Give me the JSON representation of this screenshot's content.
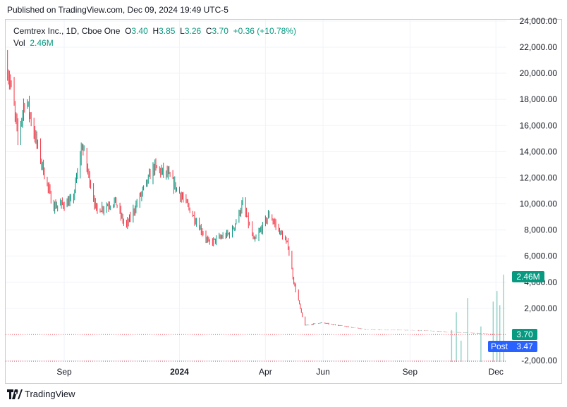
{
  "header": {
    "published": "Published on TradingView.com, Dec 09, 2024 19:49 UTC-5"
  },
  "legend": {
    "symbol": "Cemtrex Inc., 1D, Cboe One",
    "o_label": "O",
    "o": "3.40",
    "h_label": "H",
    "h": "3.85",
    "l_label": "L",
    "l": "3.26",
    "c_label": "C",
    "c": "3.70",
    "change": "+0.36 (+10.78%)",
    "vol_label": "Vol",
    "vol": "2.46M"
  },
  "badges": {
    "volume": "2.46M",
    "price": "3.70",
    "post_label": "Post",
    "post": "3.47"
  },
  "footer": {
    "brand": "TradingView"
  },
  "colors": {
    "up": "#089981",
    "down": "#f23645",
    "post": "#2962ff",
    "grid": "#f0f3fa",
    "text": "#131722"
  },
  "chart_data": {
    "type": "candlestick",
    "y_ticks": [
      "-2,000.00",
      "2,000.00",
      "4,000.00",
      "6,000.00",
      "8,000.00",
      "10,000.00",
      "12,000.00",
      "14,000.00",
      "16,000.00",
      "18,000.00",
      "20,000.00",
      "22,000.00",
      "24,000.00"
    ],
    "y_tick_values": [
      -2000,
      2000,
      4000,
      6000,
      8000,
      10000,
      12000,
      14000,
      16000,
      18000,
      20000,
      22000,
      24000
    ],
    "x_ticks": [
      "Sep",
      "2024",
      "Apr",
      "Jun",
      "Sep",
      "Dec"
    ],
    "ylim": [
      -2100,
      24100
    ],
    "last_price": 3.7,
    "post_price": 3.47,
    "price_anchors": [
      [
        "2023-07-01",
        21000
      ],
      [
        "2023-07-08",
        18500
      ],
      [
        "2023-07-14",
        15000
      ],
      [
        "2023-07-22",
        18300
      ],
      [
        "2023-08-05",
        14000
      ],
      [
        "2023-08-20",
        9800
      ],
      [
        "2023-09-10",
        10200
      ],
      [
        "2023-09-20",
        14500
      ],
      [
        "2023-10-05",
        9500
      ],
      [
        "2023-10-25",
        10200
      ],
      [
        "2023-11-05",
        8200
      ],
      [
        "2023-12-05",
        12800
      ],
      [
        "2023-12-20",
        12200
      ],
      [
        "2024-01-10",
        9800
      ],
      [
        "2024-02-01",
        7000
      ],
      [
        "2024-02-25",
        7800
      ],
      [
        "2024-03-08",
        10000
      ],
      [
        "2024-03-20",
        7100
      ],
      [
        "2024-04-05",
        9200
      ],
      [
        "2024-04-25",
        6800
      ],
      [
        "2024-05-01",
        4000
      ],
      [
        "2024-05-06",
        2600
      ],
      [
        "2024-05-12",
        700
      ],
      [
        "2024-05-30",
        900
      ],
      [
        "2024-07-15",
        400
      ],
      [
        "2024-09-15",
        300
      ],
      [
        "2024-10-10",
        200
      ],
      [
        "2024-12-09",
        3.7
      ]
    ],
    "volume_spikes": [
      [
        "2024-10-15",
        0.9
      ],
      [
        "2024-10-20",
        1.4
      ],
      [
        "2024-10-25",
        0.6
      ],
      [
        "2024-11-01",
        1.8
      ],
      [
        "2024-11-15",
        1.0
      ],
      [
        "2024-11-28",
        1.7
      ],
      [
        "2024-12-02",
        2.0
      ],
      [
        "2024-12-05",
        1.6
      ],
      [
        "2024-12-09",
        2.46
      ]
    ]
  }
}
